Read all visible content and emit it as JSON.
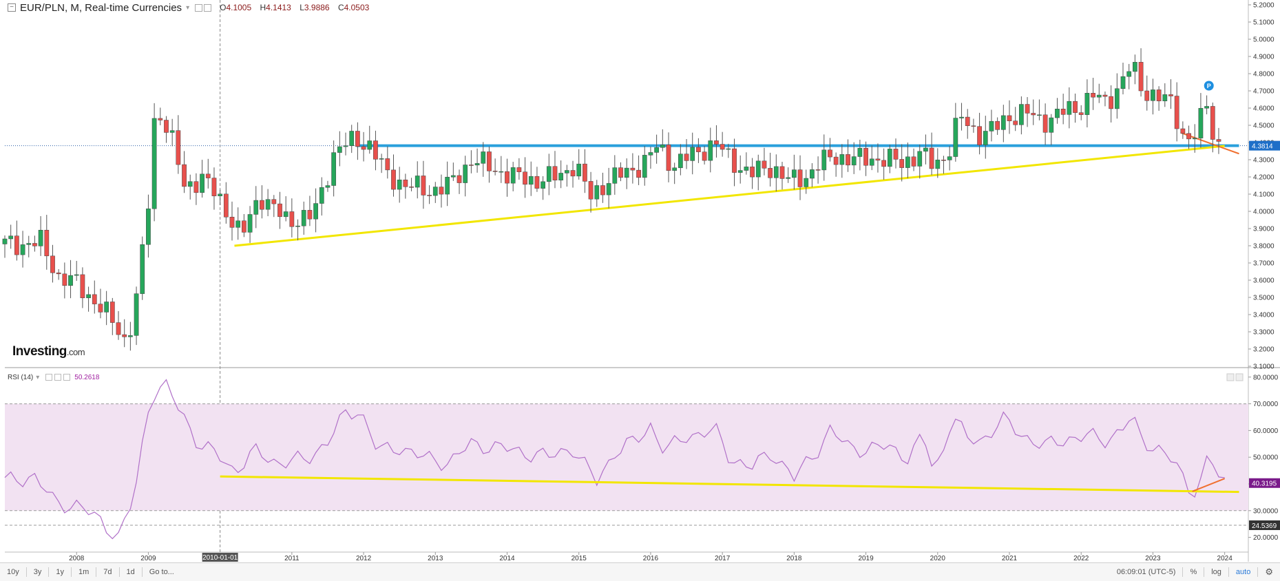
{
  "header": {
    "symbol": "EUR/PLN, M, Real-time Currencies",
    "o_label": "O",
    "o_value": "4.1005",
    "h_label": "H",
    "h_value": "4.1413",
    "l_label": "L",
    "l_value": "3.9886",
    "c_label": "C",
    "c_value": "4.0503"
  },
  "rsi_header": {
    "label": "RSI (14)",
    "value": "50.2618"
  },
  "logo": {
    "text": "Investing",
    "suffix": ".com"
  },
  "toolbar": {
    "ranges": [
      "10y",
      "3y",
      "1y",
      "1m",
      "7d",
      "1d"
    ],
    "goto": "Go to...",
    "time": "06:09:01 (UTC-5)",
    "percent": "%",
    "log": "log",
    "auto": "auto"
  },
  "colors": {
    "up": "#26a65b",
    "down": "#e8504c",
    "support_line": "#2aa0dc",
    "trend_line": "#f2e600",
    "rsi_line": "#b070c8",
    "rsi_band": "#f2e2f2",
    "orange": "#f07030",
    "current_badge": "#1e6fc8",
    "rsi_badge": "#7a1a8a"
  },
  "chart_data": [
    {
      "type": "candlestick",
      "title": "EUR/PLN, M, Real-time Currencies",
      "xlabel": "",
      "ylabel": "",
      "x_ticks": [
        "2008",
        "2009",
        "2010-01-01",
        "2011",
        "2012",
        "2013",
        "2014",
        "2015",
        "2016",
        "2017",
        "2018",
        "2019",
        "2020",
        "2021",
        "2022",
        "2023",
        "2024"
      ],
      "y_ticks": [
        "5.2000",
        "5.1000",
        "5.0000",
        "4.9000",
        "4.8000",
        "4.7000",
        "4.6000",
        "4.5000",
        "4.4000",
        "4.3000",
        "4.2000",
        "4.1000",
        "4.0000",
        "3.9000",
        "3.8000",
        "3.7000",
        "3.6000",
        "3.5000",
        "3.4000",
        "3.3000",
        "3.2000",
        "3.1000"
      ],
      "ylim": [
        3.1,
        5.2
      ],
      "current_price": "4.3814",
      "closes_anchor": [
        [
          2007.25,
          3.81
        ],
        [
          2007.5,
          3.82
        ],
        [
          2007.75,
          3.62
        ],
        [
          2008.0,
          3.58
        ],
        [
          2008.25,
          3.48
        ],
        [
          2008.5,
          3.36
        ],
        [
          2008.7,
          3.24
        ],
        [
          2008.85,
          3.52
        ],
        [
          2009.0,
          4.05
        ],
        [
          2009.1,
          4.62
        ],
        [
          2009.3,
          4.45
        ],
        [
          2009.5,
          4.15
        ],
        [
          2009.75,
          4.19
        ],
        [
          2010.0,
          4.07
        ],
        [
          2010.3,
          3.85
        ],
        [
          2010.55,
          4.1
        ],
        [
          2010.9,
          3.95
        ],
        [
          2011.3,
          3.97
        ],
        [
          2011.6,
          4.35
        ],
        [
          2011.9,
          4.42
        ],
        [
          2012.1,
          4.38
        ],
        [
          2012.3,
          4.22
        ],
        [
          2012.6,
          4.15
        ],
        [
          2012.9,
          4.12
        ],
        [
          2013.2,
          4.15
        ],
        [
          2013.5,
          4.3
        ],
        [
          2013.8,
          4.25
        ],
        [
          2014.1,
          4.2
        ],
        [
          2014.4,
          4.18
        ],
        [
          2014.7,
          4.2
        ],
        [
          2014.95,
          4.28
        ],
        [
          2015.15,
          4.08
        ],
        [
          2015.4,
          4.18
        ],
        [
          2015.7,
          4.23
        ],
        [
          2015.95,
          4.3
        ],
        [
          2016.1,
          4.38
        ],
        [
          2016.3,
          4.27
        ],
        [
          2016.6,
          4.33
        ],
        [
          2016.9,
          4.4
        ],
        [
          2017.1,
          4.3
        ],
        [
          2017.4,
          4.22
        ],
        [
          2017.7,
          4.26
        ],
        [
          2017.95,
          4.17
        ],
        [
          2018.15,
          4.2
        ],
        [
          2018.35,
          4.28
        ],
        [
          2018.6,
          4.32
        ],
        [
          2018.9,
          4.3
        ],
        [
          2019.2,
          4.31
        ],
        [
          2019.5,
          4.28
        ],
        [
          2019.75,
          4.34
        ],
        [
          2019.95,
          4.26
        ],
        [
          2020.15,
          4.35
        ],
        [
          2020.3,
          4.55
        ],
        [
          2020.55,
          4.45
        ],
        [
          2020.8,
          4.48
        ],
        [
          2021.0,
          4.55
        ],
        [
          2021.2,
          4.58
        ],
        [
          2021.45,
          4.52
        ],
        [
          2021.7,
          4.57
        ],
        [
          2021.95,
          4.6
        ],
        [
          2022.15,
          4.68
        ],
        [
          2022.35,
          4.62
        ],
        [
          2022.55,
          4.75
        ],
        [
          2022.7,
          4.85
        ],
        [
          2022.85,
          4.7
        ],
        [
          2023.05,
          4.68
        ],
        [
          2023.25,
          4.62
        ],
        [
          2023.45,
          4.42
        ],
        [
          2023.6,
          4.45
        ],
        [
          2023.75,
          4.62
        ],
        [
          2023.85,
          4.42
        ],
        [
          2023.95,
          4.38
        ]
      ],
      "support_level": 4.3814,
      "trendline": [
        [
          2010.2,
          3.8
        ],
        [
          2024.0,
          4.38
        ]
      ]
    },
    {
      "type": "line",
      "title": "RSI (14)",
      "xlabel": "",
      "ylabel": "",
      "y_ticks": [
        "80.0000",
        "70.0000",
        "60.0000",
        "50.0000",
        "40.0000",
        "30.0000",
        "20.0000"
      ],
      "ylim": [
        15,
        82
      ],
      "bands": [
        30,
        70
      ],
      "extra_level": 24.5369,
      "last_value": "40.3195",
      "extra_label": "24.5369",
      "rsi_anchor": [
        [
          2007.0,
          41
        ],
        [
          2007.4,
          43
        ],
        [
          2007.7,
          33
        ],
        [
          2008.0,
          32
        ],
        [
          2008.3,
          27
        ],
        [
          2008.6,
          20
        ],
        [
          2008.8,
          35
        ],
        [
          2009.0,
          68
        ],
        [
          2009.1,
          76
        ],
        [
          2009.25,
          76
        ],
        [
          2009.5,
          65
        ],
        [
          2009.7,
          55
        ],
        [
          2010.0,
          50
        ],
        [
          2010.2,
          45
        ],
        [
          2010.5,
          52
        ],
        [
          2010.8,
          48
        ],
        [
          2011.2,
          49
        ],
        [
          2011.5,
          56
        ],
        [
          2011.75,
          66
        ],
        [
          2011.95,
          68
        ],
        [
          2012.2,
          52
        ],
        [
          2012.5,
          54
        ],
        [
          2012.8,
          50
        ],
        [
          2013.2,
          48
        ],
        [
          2013.5,
          55
        ],
        [
          2013.8,
          54
        ],
        [
          2014.2,
          52
        ],
        [
          2014.6,
          50
        ],
        [
          2014.9,
          54
        ],
        [
          2015.1,
          46
        ],
        [
          2015.25,
          41
        ],
        [
          2015.5,
          52
        ],
        [
          2015.8,
          56
        ],
        [
          2016.0,
          62
        ],
        [
          2016.2,
          52
        ],
        [
          2016.5,
          58
        ],
        [
          2016.9,
          60
        ],
        [
          2017.1,
          50
        ],
        [
          2017.4,
          46
        ],
        [
          2017.7,
          52
        ],
        [
          2018.0,
          42
        ],
        [
          2018.3,
          52
        ],
        [
          2018.5,
          60
        ],
        [
          2018.75,
          54
        ],
        [
          2019.0,
          53
        ],
        [
          2019.3,
          54
        ],
        [
          2019.6,
          50
        ],
        [
          2019.8,
          58
        ],
        [
          2019.95,
          44
        ],
        [
          2020.1,
          55
        ],
        [
          2020.2,
          66
        ],
        [
          2020.4,
          57
        ],
        [
          2020.6,
          56
        ],
        [
          2020.9,
          64
        ],
        [
          2021.2,
          58
        ],
        [
          2021.5,
          54
        ],
        [
          2021.8,
          57
        ],
        [
          2022.1,
          58
        ],
        [
          2022.3,
          56
        ],
        [
          2022.55,
          60
        ],
        [
          2022.7,
          65
        ],
        [
          2022.85,
          56
        ],
        [
          2023.05,
          54
        ],
        [
          2023.3,
          48
        ],
        [
          2023.45,
          40
        ],
        [
          2023.55,
          37
        ],
        [
          2023.7,
          43
        ],
        [
          2023.78,
          52
        ],
        [
          2023.88,
          44
        ],
        [
          2023.97,
          40
        ]
      ],
      "trendline": [
        [
          2010.0,
          42.8
        ],
        [
          2024.2,
          37.0
        ]
      ]
    }
  ]
}
